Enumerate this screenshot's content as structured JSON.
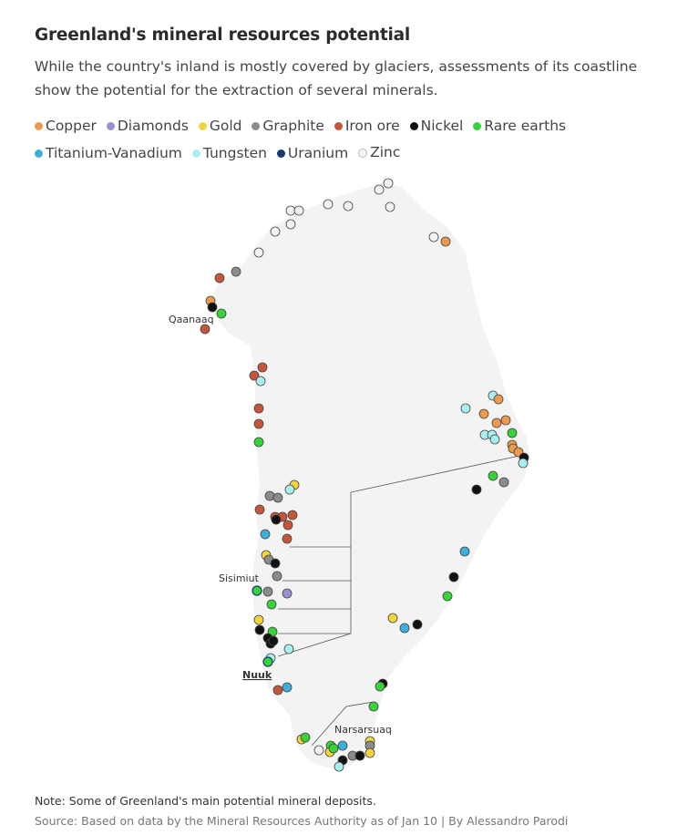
{
  "title": "Greenland's mineral resources potential",
  "subtitle": "While the country's inland is mostly covered by glaciers, assessments of its coastline show the potential for the extraction of several minerals.",
  "legend": [
    {
      "label": "Copper",
      "color": "#ee9a4d"
    },
    {
      "label": "Diamonds",
      "color": "#9b8fcf"
    },
    {
      "label": "Gold",
      "color": "#f2d43d"
    },
    {
      "label": "Graphite",
      "color": "#8c8c8c"
    },
    {
      "label": "Iron ore",
      "color": "#c6553c"
    },
    {
      "label": "Nickel",
      "color": "#111111"
    },
    {
      "label": "Rare earths",
      "color": "#36d436"
    },
    {
      "label": "Titanium-Vanadium",
      "color": "#3cb0d8"
    },
    {
      "label": "Tungsten",
      "color": "#a8f0f0"
    },
    {
      "label": "Uranium",
      "color": "#163a6e"
    },
    {
      "label": "Zinc",
      "color": "#f2f2f2"
    }
  ],
  "places": {
    "qaanaaq": "Qaanaaq",
    "sisimiut": "Sisimiut",
    "nuuk": "Nuuk",
    "narsarsuaq": "Narsarsuaq"
  },
  "note": "Note: Some of Greenland's main potential mineral deposits.",
  "source": "Source: Based on data by the Mineral Resources Authority as of Jan 10 | By Alessandro Parodi"
}
